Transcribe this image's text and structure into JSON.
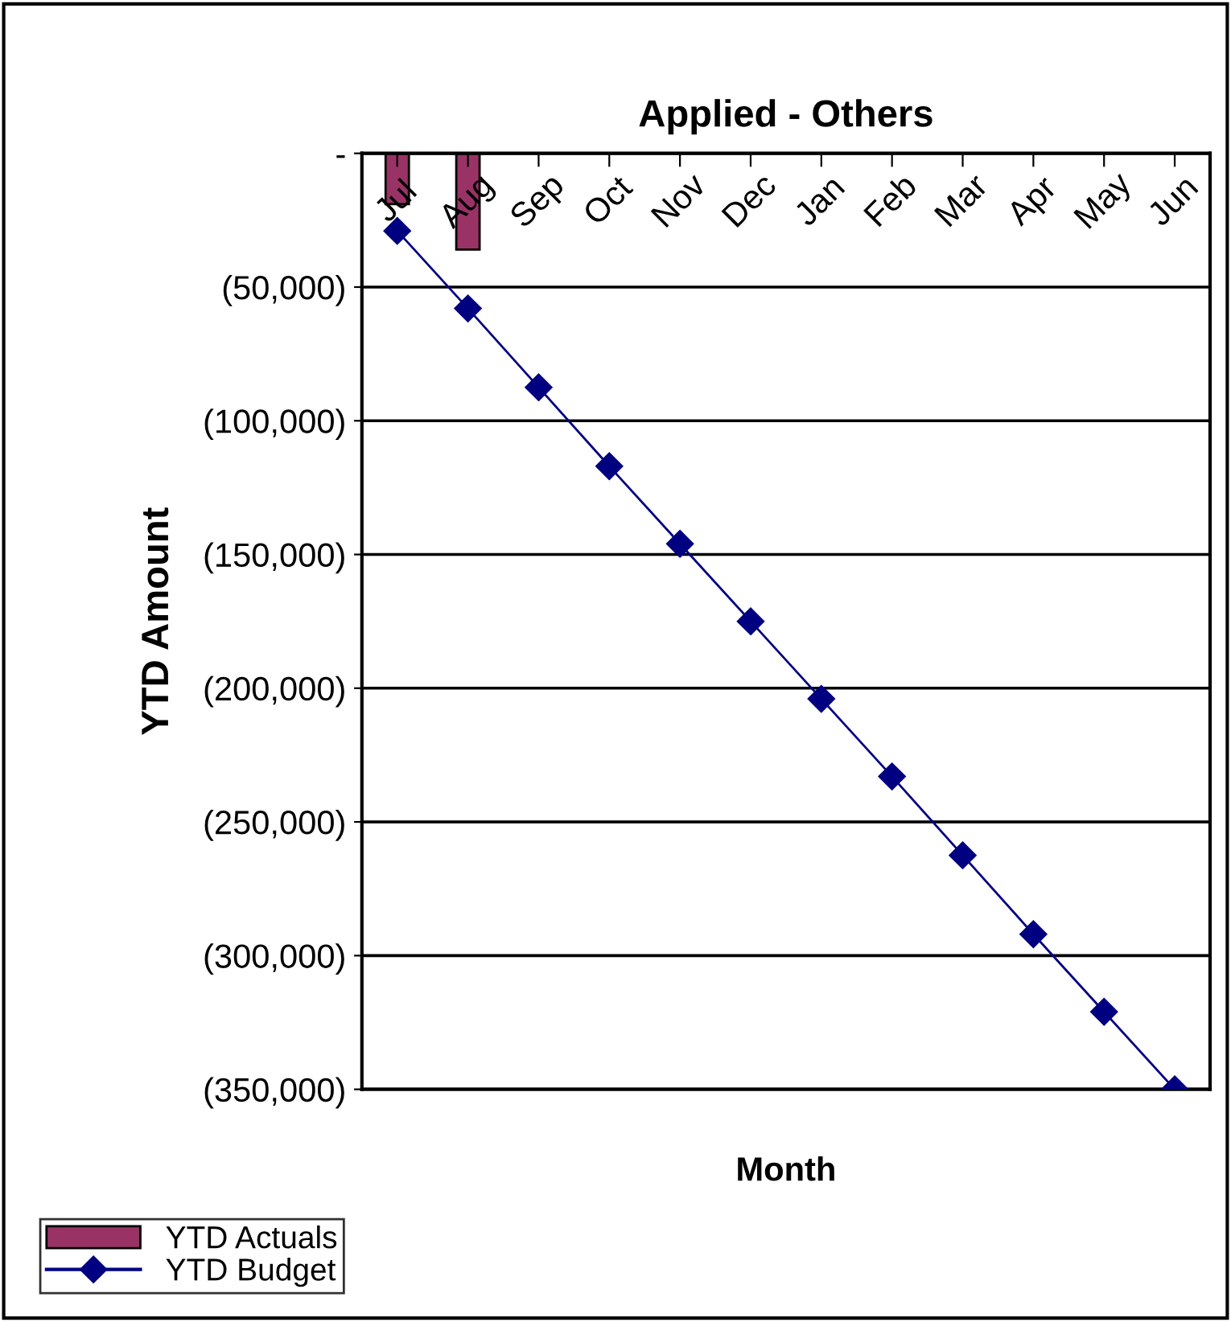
{
  "chart_data": {
    "type": "bar",
    "title": "Applied - Others",
    "xlabel": "Month",
    "ylabel": "YTD Amount",
    "categories": [
      "Jul",
      "Aug",
      "Sep",
      "Oct",
      "Nov",
      "Dec",
      "Jan",
      "Feb",
      "Mar",
      "Apr",
      "May",
      "Jun"
    ],
    "series": [
      {
        "name": "YTD Actuals",
        "color": "#993366",
        "values": [
          -19000,
          -36000,
          null,
          null,
          null,
          null,
          null,
          null,
          null,
          null,
          null,
          null
        ]
      },
      {
        "name": "YTD Budget",
        "type": "line",
        "color": "#000080",
        "values": [
          -29000,
          -58000,
          -87500,
          -117000,
          -146000,
          -175000,
          -204000,
          -233000,
          -262500,
          -292000,
          -321000,
          -350000
        ]
      }
    ],
    "ylim": [
      -350000,
      0
    ],
    "yticks": [
      {
        "value": 0,
        "label": "-"
      },
      {
        "value": -50000,
        "label": "(50,000)"
      },
      {
        "value": -100000,
        "label": "(100,000)"
      },
      {
        "value": -150000,
        "label": "(150,000)"
      },
      {
        "value": -200000,
        "label": "(200,000)"
      },
      {
        "value": -250000,
        "label": "(250,000)"
      },
      {
        "value": -300000,
        "label": "(300,000)"
      },
      {
        "value": -350000,
        "label": "(350,000)"
      }
    ],
    "grid": "y",
    "legend": "bottom left",
    "marker": "diamond"
  }
}
